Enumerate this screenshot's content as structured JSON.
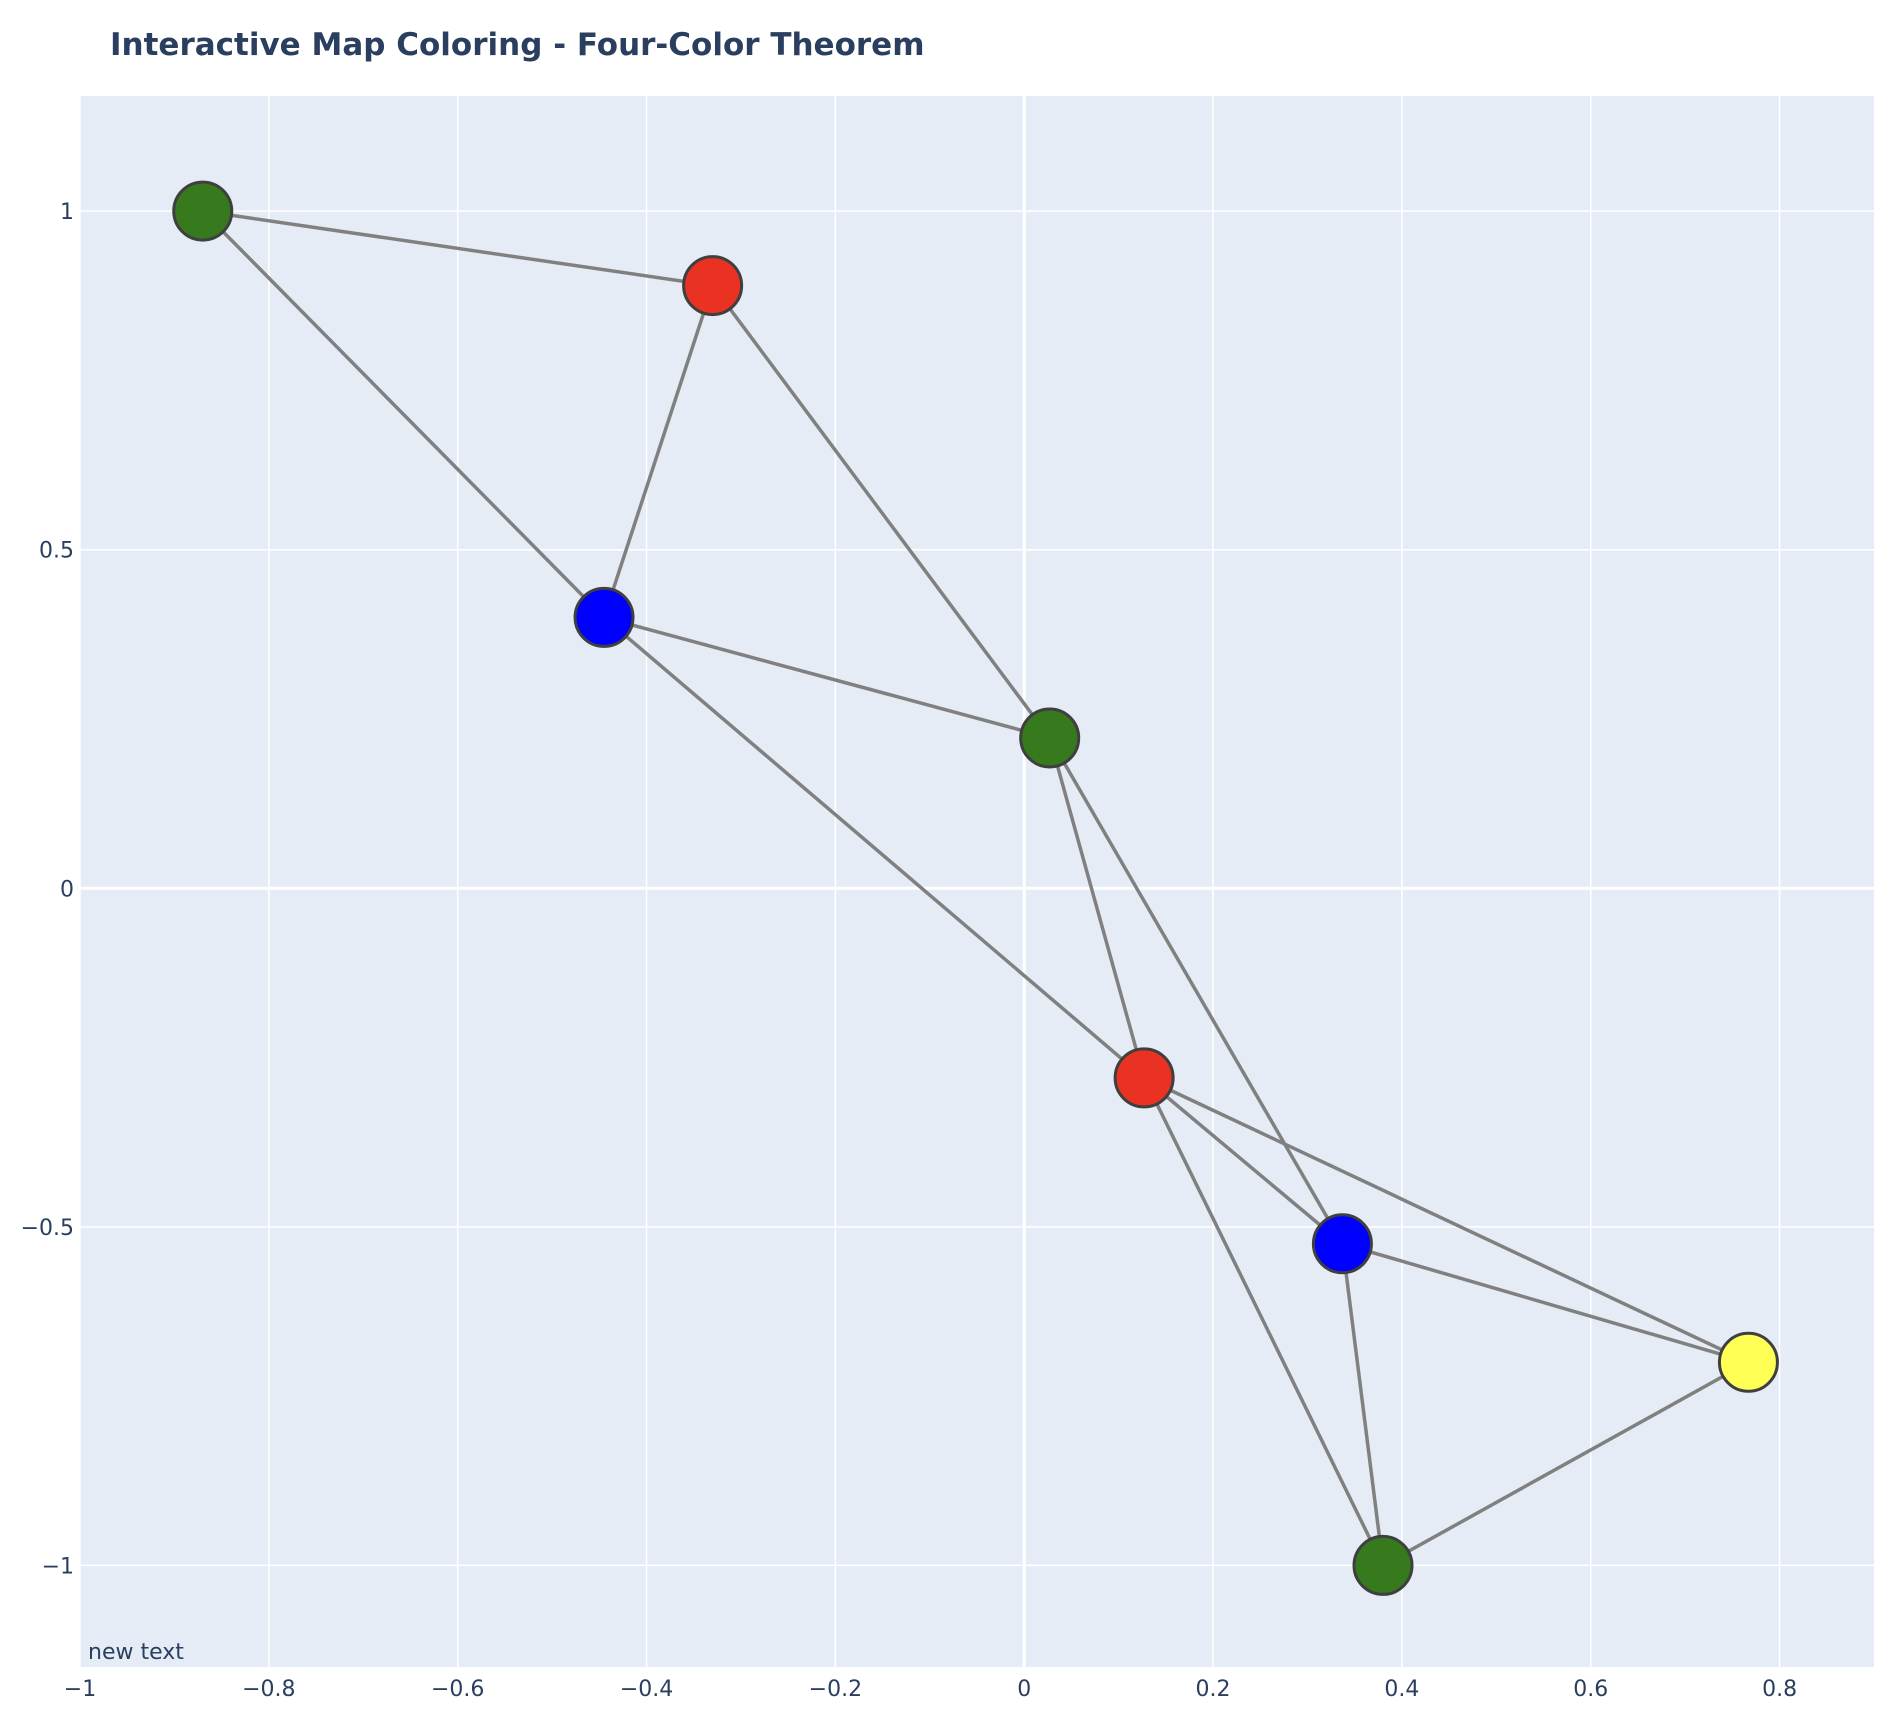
{
  "chart_data": {
    "type": "scatter",
    "title": "Interactive Map Coloring - Four-Color Theorem",
    "annotation": "new text",
    "xlim": [
      -1,
      0.9
    ],
    "ylim": [
      -1.15,
      1.17
    ],
    "x_ticks": [
      -1,
      -0.8,
      -0.6,
      -0.4,
      -0.2,
      0,
      0.2,
      0.4,
      0.6,
      0.8
    ],
    "y_ticks": [
      -1,
      -0.5,
      0,
      0.5,
      1
    ],
    "x_tick_labels": [
      "−1",
      "−0.8",
      "−0.6",
      "−0.4",
      "−0.2",
      "0",
      "0.2",
      "0.4",
      "0.6",
      "0.8"
    ],
    "y_tick_labels": [
      "−1",
      "−0.5",
      "0",
      "0.5",
      "1"
    ],
    "grid": true,
    "colors": {
      "plot_bg": "#e5ecf6",
      "grid": "#ffffff",
      "edge": "#808080",
      "node_outline": "#3f3f3f",
      "text": "#2a3f5f"
    },
    "nodes": [
      {
        "x": -0.87,
        "y": 1.0,
        "color": "#367a1d"
      },
      {
        "x": -0.33,
        "y": 0.89,
        "color": "#ea3223"
      },
      {
        "x": -0.445,
        "y": 0.4,
        "color": "#0000ff"
      },
      {
        "x": 0.027,
        "y": 0.222,
        "color": "#367a1d"
      },
      {
        "x": 0.127,
        "y": -0.28,
        "color": "#ea3223"
      },
      {
        "x": 0.337,
        "y": -0.525,
        "color": "#0000ff"
      },
      {
        "x": 0.767,
        "y": -0.7,
        "color": "#ffff55"
      },
      {
        "x": 0.38,
        "y": -1.0,
        "color": "#367a1d"
      }
    ],
    "edges": [
      [
        0,
        1
      ],
      [
        0,
        2
      ],
      [
        1,
        2
      ],
      [
        1,
        3
      ],
      [
        2,
        3
      ],
      [
        2,
        4
      ],
      [
        3,
        4
      ],
      [
        3,
        5
      ],
      [
        4,
        5
      ],
      [
        4,
        6
      ],
      [
        4,
        7
      ],
      [
        5,
        6
      ],
      [
        5,
        7
      ],
      [
        6,
        7
      ]
    ]
  }
}
